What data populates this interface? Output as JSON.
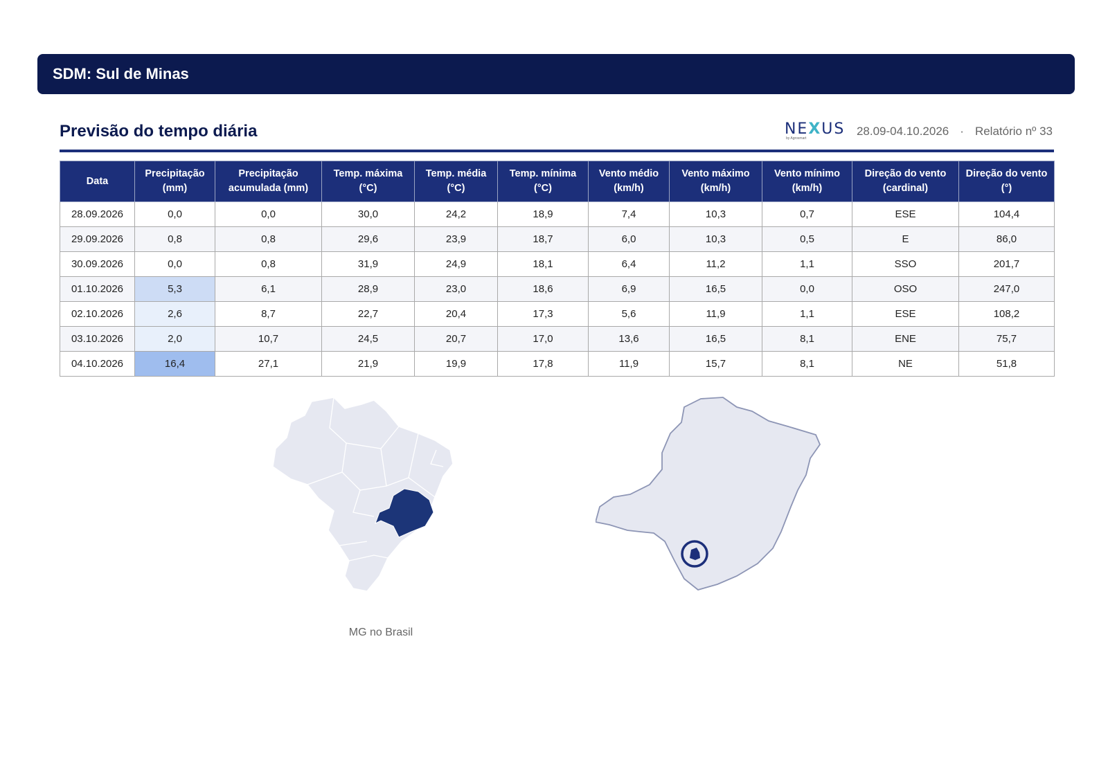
{
  "banner": {
    "title": "SDM: Sul de Minas"
  },
  "report": {
    "title": "Previsão do tempo diária",
    "logo_text": "NEXUS",
    "logo_subtext": "by Agrosmart",
    "period": "28.09-04.10.2026",
    "separator": "·",
    "report_number": "Relatório nº 33"
  },
  "table": {
    "columns": [
      "Data",
      "Precipitação (mm)",
      "Precipitação acumulada (mm)",
      "Temp. máxima (°C)",
      "Temp. média (°C)",
      "Temp. mínima (°C)",
      "Vento médio (km/h)",
      "Vento máximo (km/h)",
      "Vento mínimo (km/h)",
      "Direção do vento (cardinal)",
      "Direção do vento (°)"
    ],
    "rows": [
      [
        "28.09.2026",
        "0,0",
        "0,0",
        "30,0",
        "24,2",
        "18,9",
        "7,4",
        "10,3",
        "0,7",
        "ESE",
        "104,4"
      ],
      [
        "29.09.2026",
        "0,8",
        "0,8",
        "29,6",
        "23,9",
        "18,7",
        "6,0",
        "10,3",
        "0,5",
        "E",
        "86,0"
      ],
      [
        "30.09.2026",
        "0,0",
        "0,8",
        "31,9",
        "24,9",
        "18,1",
        "6,4",
        "11,2",
        "1,1",
        "SSO",
        "201,7"
      ],
      [
        "01.10.2026",
        "5,3",
        "6,1",
        "28,9",
        "23,0",
        "18,6",
        "6,9",
        "16,5",
        "0,0",
        "OSO",
        "247,0"
      ],
      [
        "02.10.2026",
        "2,6",
        "8,7",
        "22,7",
        "20,4",
        "17,3",
        "5,6",
        "11,9",
        "1,1",
        "ESE",
        "108,2"
      ],
      [
        "03.10.2026",
        "2,0",
        "10,7",
        "24,5",
        "20,7",
        "17,0",
        "13,6",
        "16,5",
        "8,1",
        "ENE",
        "75,7"
      ],
      [
        "04.10.2026",
        "16,4",
        "27,1",
        "21,9",
        "19,9",
        "17,8",
        "11,9",
        "15,7",
        "8,1",
        "NE",
        "51,8"
      ]
    ]
  },
  "maps": {
    "brazil_caption": "MG no Brasil",
    "colors": {
      "region": "#e6e8f1",
      "highlight": "#1c3578",
      "outline": "#8d95b5"
    }
  }
}
